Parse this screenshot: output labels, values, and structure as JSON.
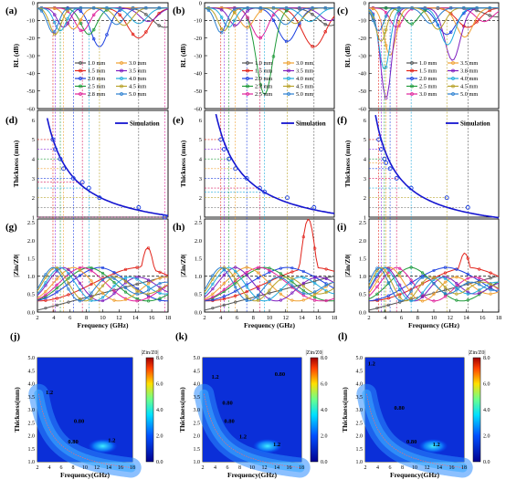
{
  "palette": {
    "rl": [
      "#555555",
      "#e2231a",
      "#1b3fe0",
      "#1f9b3a",
      "#e0219b",
      "#f0a030",
      "#7f1fbf",
      "#1faadc",
      "#b8a22a",
      "#2a7fd0",
      "#d81b60"
    ],
    "sim": "#1515d0",
    "ref_line": "#000000",
    "guide_colors": [
      "#e2231a",
      "#8a2be2",
      "#1f9b3a",
      "#f0a030",
      "#1b3fe0",
      "#d81b60",
      "#1faadc",
      "#b8a22a",
      "#555555",
      "#e0219b"
    ]
  },
  "panels": {
    "a": {
      "label": "(a)"
    },
    "b": {
      "label": "(b)"
    },
    "c": {
      "label": "(c)"
    },
    "d": {
      "label": "(d)"
    },
    "e": {
      "label": "(e)"
    },
    "f": {
      "label": "(f)"
    },
    "g": {
      "label": "(g)"
    },
    "h": {
      "label": "(h)"
    },
    "i": {
      "label": "(i)"
    },
    "j": {
      "label": "(j)"
    },
    "k": {
      "label": "(k)"
    },
    "l": {
      "label": "(l)"
    }
  },
  "axes": {
    "rl_ylabel": "RL (dB)",
    "thickness_ylabel": "Thickness (mm)",
    "z_ylabel": "|Zin/Z0|",
    "freq_xlabel": "Frequency (GHz)",
    "map_ylabel": "Thickness(mm)",
    "map_xlabel": "Frequency(GHz)",
    "x_ticks": [
      "2",
      "4",
      "6",
      "8",
      "10",
      "12",
      "14",
      "16",
      "18"
    ],
    "rl_yticks": [
      "0",
      "-10",
      "-20",
      "-30",
      "-40",
      "-50",
      "-60"
    ],
    "th_yticks": [
      "6",
      "5",
      "4",
      "3",
      "2",
      "1"
    ],
    "z_yticks": [
      "2.5",
      "2.0",
      "1.5",
      "1.0",
      "0.5",
      "0.0"
    ],
    "map_xticks": [
      "2",
      "4",
      "6",
      "8",
      "10",
      "12",
      "14",
      "16",
      "18"
    ],
    "map_yticks": [
      "5.0",
      "4.5",
      "4.0",
      "3.5",
      "3.0",
      "2.5",
      "2.0",
      "1.5",
      "1.0"
    ],
    "colorbar_ticks": [
      "8.0",
      "6.0",
      "4.0",
      "2.0",
      "0.0"
    ],
    "colorbar_title": "|Zin/Z0|"
  },
  "sim_label": "Simulation",
  "chart_data": [
    {
      "panel": "a",
      "type": "line",
      "xlabel": "",
      "ylabel": "RL (dB)",
      "xlim": [
        2,
        18
      ],
      "ylim": [
        -60,
        0
      ],
      "reference_line": -10,
      "legend": [
        "1.0 mm",
        "1.5 mm",
        "2.0 mm",
        "2.5 mm",
        "2.8 mm",
        "3.0 mm",
        "3.5 mm",
        "4.0 mm",
        "4.5 mm",
        "5.0 mm"
      ],
      "series": [
        {
          "name": "1.0 mm",
          "min_freq": 17.6,
          "min_rl": -14
        },
        {
          "name": "1.5 mm",
          "min_freq": 14.4,
          "min_rl": -20
        },
        {
          "name": "2.0 mm",
          "min_freq": 9.6,
          "min_rl": -25
        },
        {
          "name": "2.5 mm",
          "min_freq": 8.3,
          "min_rl": -18
        },
        {
          "name": "2.8 mm",
          "min_freq": 7.5,
          "min_rl": -16
        },
        {
          "name": "3.0 mm",
          "min_freq": 6.4,
          "min_rl": -15
        },
        {
          "name": "3.5 mm",
          "min_freq": 5.2,
          "min_rl": -14
        },
        {
          "name": "4.0 mm",
          "min_freq": 4.8,
          "min_rl": -16
        },
        {
          "name": "4.5 mm",
          "min_freq": 4.2,
          "min_rl": -18
        },
        {
          "name": "5.0 mm",
          "min_freq": 3.9,
          "min_rl": -17
        }
      ]
    },
    {
      "panel": "b",
      "type": "line",
      "xlabel": "",
      "ylabel": "RL (dB)",
      "xlim": [
        2,
        18
      ],
      "ylim": [
        -60,
        0
      ],
      "reference_line": -10,
      "legend": [
        "1.0 mm",
        "1.5 mm",
        "2.0 mm",
        "2.3 mm",
        "2.5 mm",
        "3.0 mm",
        "3.5 mm",
        "4.0 mm",
        "4.5 mm",
        "5.0 mm"
      ],
      "series": [
        {
          "name": "1.0 mm",
          "min_freq": 17.5,
          "min_rl": -13
        },
        {
          "name": "1.5 mm",
          "min_freq": 15.5,
          "min_rl": -25
        },
        {
          "name": "2.0 mm",
          "min_freq": 12.2,
          "min_rl": -22
        },
        {
          "name": "2.3 mm",
          "min_freq": 9.4,
          "min_rl": -52
        },
        {
          "name": "2.5 mm",
          "min_freq": 8.8,
          "min_rl": -20
        },
        {
          "name": "3.0 mm",
          "min_freq": 7.2,
          "min_rl": -14
        },
        {
          "name": "3.5 mm",
          "min_freq": 5.8,
          "min_rl": -13
        },
        {
          "name": "4.0 mm",
          "min_freq": 5.0,
          "min_rl": -14
        },
        {
          "name": "4.5 mm",
          "min_freq": 4.4,
          "min_rl": -16
        },
        {
          "name": "5.0 mm",
          "min_freq": 4.0,
          "min_rl": -17
        }
      ]
    },
    {
      "panel": "c",
      "type": "line",
      "xlabel": "",
      "ylabel": "RL (dB)",
      "xlim": [
        2,
        18
      ],
      "ylim": [
        -60,
        0
      ],
      "reference_line": -10,
      "legend": [
        "1.0 mm",
        "1.5 mm",
        "2.0 mm",
        "2.5 mm",
        "3.0 mm",
        "3.5 mm",
        "3.8 mm",
        "4.0 mm",
        "4.5 mm",
        "5.0 mm"
      ],
      "series": [
        {
          "name": "1.0 mm",
          "min_freq": 17.8,
          "min_rl": -8
        },
        {
          "name": "1.5 mm",
          "min_freq": 14.2,
          "min_rl": -14
        },
        {
          "name": "2.0 mm",
          "min_freq": 11.6,
          "min_rl": -18
        },
        {
          "name": "2.5 mm",
          "min_freq": 7.2,
          "min_rl": -12
        },
        {
          "name": "3.0 mm",
          "min_freq": 5.4,
          "min_rl": -14
        },
        {
          "name": "3.5 mm",
          "min_freq": 4.6,
          "min_rl": -30
        },
        {
          "name": "3.8 mm",
          "min_freq": 4.1,
          "min_rl": -54
        },
        {
          "name": "4.0 mm",
          "min_freq": 3.9,
          "min_rl": -38
        },
        {
          "name": "4.5 mm",
          "min_freq": 3.5,
          "min_rl": -22
        },
        {
          "name": "5.0 mm",
          "min_freq": 3.2,
          "min_rl": -16
        }
      ]
    },
    {
      "panel": "d",
      "type": "line",
      "ylabel": "Thickness (mm)",
      "xlim": [
        2,
        18
      ],
      "ylim": [
        1,
        6
      ],
      "series": [
        {
          "name": "Simulation"
        }
      ],
      "points": [
        [
          3.9,
          5.0
        ],
        [
          4.2,
          4.5
        ],
        [
          4.8,
          4.0
        ],
        [
          5.2,
          3.5
        ],
        [
          6.4,
          3.0
        ],
        [
          7.5,
          2.8
        ],
        [
          8.3,
          2.5
        ],
        [
          9.6,
          2.0
        ],
        [
          14.4,
          1.5
        ],
        [
          17.6,
          1.0
        ]
      ]
    },
    {
      "panel": "e",
      "type": "line",
      "ylabel": "Thickness (mm)",
      "xlim": [
        2,
        18
      ],
      "ylim": [
        1,
        6
      ],
      "series": [
        {
          "name": "Simulation"
        }
      ],
      "points": [
        [
          4.0,
          5.0
        ],
        [
          4.4,
          4.5
        ],
        [
          5.0,
          4.0
        ],
        [
          5.8,
          3.5
        ],
        [
          7.2,
          3.0
        ],
        [
          8.8,
          2.5
        ],
        [
          9.4,
          2.3
        ],
        [
          12.2,
          2.0
        ],
        [
          15.5,
          1.5
        ]
      ]
    },
    {
      "panel": "f",
      "type": "line",
      "ylabel": "Thickness (mm)",
      "xlim": [
        2,
        18
      ],
      "ylim": [
        1,
        6
      ],
      "series": [
        {
          "name": "Simulation"
        }
      ],
      "points": [
        [
          3.2,
          5.0
        ],
        [
          3.5,
          4.5
        ],
        [
          3.9,
          4.0
        ],
        [
          4.1,
          3.8
        ],
        [
          4.6,
          3.5
        ],
        [
          5.4,
          3.0
        ],
        [
          7.2,
          2.5
        ],
        [
          11.6,
          2.0
        ],
        [
          14.2,
          1.5
        ]
      ]
    },
    {
      "panel": "g",
      "type": "line",
      "ylabel": "|Zin/Z0|",
      "xlabel": "Frequency (GHz)",
      "xlim": [
        2,
        18
      ],
      "ylim": [
        0,
        2.5
      ],
      "reference_line": 1.0,
      "peak": [
        15.5,
        1.8
      ]
    },
    {
      "panel": "h",
      "type": "line",
      "ylabel": "|Zin/Z0|",
      "xlabel": "Frequency (GHz)",
      "xlim": [
        2,
        18
      ],
      "ylim": [
        0,
        2.5
      ],
      "reference_line": 1.0,
      "peak": [
        14.8,
        2.6
      ]
    },
    {
      "panel": "i",
      "type": "line",
      "ylabel": "|Zin/Z0|",
      "xlabel": "Frequency (GHz)",
      "xlim": [
        2,
        18
      ],
      "ylim": [
        0,
        2.5
      ],
      "reference_line": 1.0,
      "peak": [
        13.8,
        1.65
      ]
    },
    {
      "panel": "j",
      "type": "heatmap",
      "xlabel": "Frequency(GHz)",
      "ylabel": "Thickness(mm)",
      "xlim": [
        2,
        18
      ],
      "ylim": [
        1,
        5
      ],
      "colorbar": [
        0,
        8
      ],
      "contour_labels": [
        "1.2",
        "0.80",
        "0.80",
        "1.2"
      ]
    },
    {
      "panel": "k",
      "type": "heatmap",
      "xlabel": "Frequency(GHz)",
      "ylabel": "Thickness(mm)",
      "xlim": [
        2,
        18
      ],
      "ylim": [
        1,
        5
      ],
      "colorbar": [
        0,
        8
      ],
      "contour_labels": [
        "1.2",
        "0.80",
        "0.80",
        "0.80",
        "1.2",
        "1.2"
      ]
    },
    {
      "panel": "l",
      "type": "heatmap",
      "xlabel": "Frequency(GHz)",
      "ylabel": "Thickness(mm)",
      "xlim": [
        2,
        18
      ],
      "ylim": [
        1,
        5
      ],
      "colorbar": [
        0,
        8
      ],
      "contour_labels": [
        "1.2",
        "0.80",
        "0.80",
        "1.2"
      ]
    }
  ]
}
